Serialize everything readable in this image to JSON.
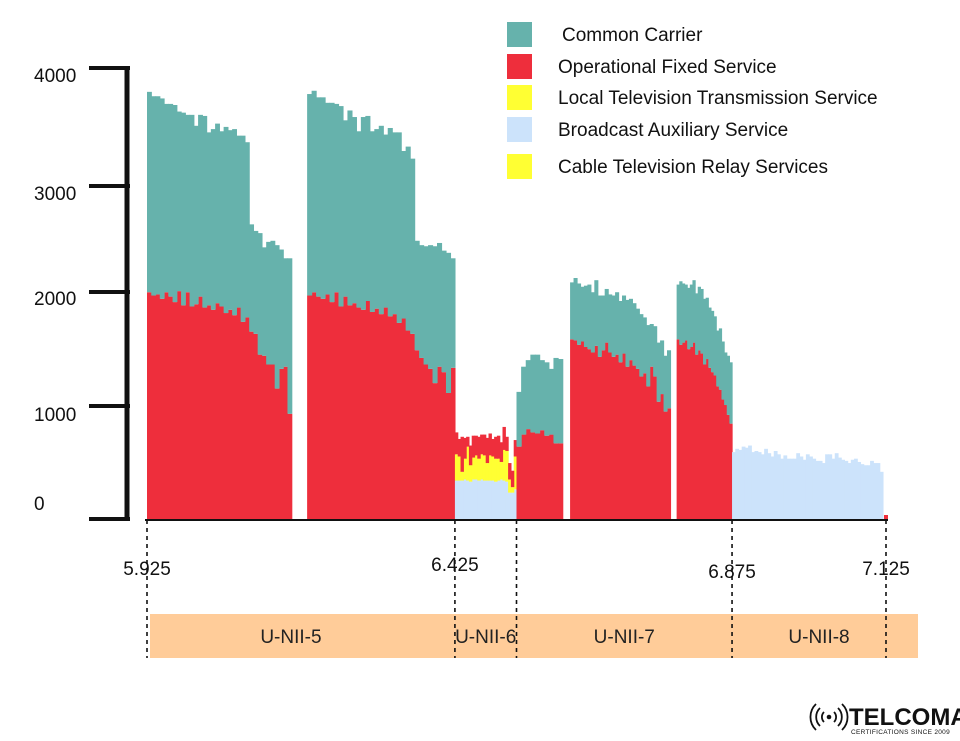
{
  "chart_data": {
    "type": "bar",
    "title": "",
    "xlabel": "",
    "ylabel": "",
    "ylim": [
      0,
      4000
    ],
    "xlim": [
      5.925,
      7.125
    ],
    "y_ticks": [
      "4000",
      "3000",
      "2000",
      "1000",
      "0"
    ],
    "x_ticks": [
      {
        "value": 5.925,
        "label": "5.925"
      },
      {
        "value": 6.425,
        "label": "6.425"
      },
      {
        "value": 6.875,
        "label": "6.875"
      },
      {
        "value": 7.125,
        "label": "7.125"
      }
    ],
    "bands": [
      {
        "label": "U-NII-5",
        "from": 5.925,
        "to": 6.425
      },
      {
        "label": "U-NII-6",
        "from": 6.425,
        "to": 6.525
      },
      {
        "label": "U-NII-7",
        "from": 6.525,
        "to": 6.875
      },
      {
        "label": "U-NII-8",
        "from": 6.875,
        "to": 7.125
      }
    ],
    "grid": false,
    "legend_position": "top-right",
    "series": [
      {
        "name": "Common Carrier",
        "color": "#66b2ac"
      },
      {
        "name": "Operational Fixed Service",
        "color": "#ee2e3c"
      },
      {
        "name": "Local Television Transmission Service",
        "color": "#ffff33"
      },
      {
        "name": "Broadcast Auxiliary Service",
        "color": "#cce3fb"
      },
      {
        "name": "Cable Television Relay Services",
        "color": "#ffff33"
      }
    ],
    "bar_groups": [
      {
        "x_start": 5.925,
        "x_end": 6.16,
        "stacks": [
          {
            "series": "Operational Fixed Service",
            "values": [
              2080,
              2050,
              2060,
              2020,
              2080,
              2040,
              1990,
              2090,
              1960,
              2080,
              1950,
              1970,
              2040,
              1940,
              1960,
              1920,
              1980,
              1950,
              1890,
              1920,
              1870,
              1940,
              1810,
              1850,
              1720,
              1700,
              1510,
              1500,
              1420,
              1420,
              1200,
              1380,
              1400,
              970
            ]
          },
          {
            "series": "Common Carrier",
            "values": [
              1830,
              1820,
              1810,
              1830,
              1720,
              1760,
              1800,
              1640,
              1760,
              1620,
              1750,
              1630,
              1660,
              1750,
              1580,
              1650,
              1640,
              1600,
              1700,
              1640,
              1700,
              1570,
              1700,
              1600,
              980,
              940,
              1110,
              990,
              1120,
              1130,
              1310,
              1090,
              990,
              1420
            ]
          }
        ]
      },
      {
        "x_start": 6.185,
        "x_end": 6.425,
        "stacks": [
          {
            "series": "Operational Fixed Service",
            "values": [
              2050,
              2080,
              2040,
              2020,
              2060,
              1990,
              2080,
              1950,
              2040,
              1960,
              1980,
              1940,
              1920,
              2000,
              1900,
              1930,
              1880,
              1940,
              1860,
              1880,
              1800,
              1840,
              1730,
              1700,
              1550,
              1480,
              1420,
              1380,
              1250,
              1400,
              1350,
              1160,
              1390
            ]
          },
          {
            "series": "Common Carrier",
            "values": [
              1840,
              1840,
              1820,
              1840,
              1750,
              1820,
              1720,
              1830,
              1610,
              1780,
              1700,
              1610,
              1760,
              1690,
              1650,
              1640,
              1720,
              1580,
              1720,
              1660,
              1740,
              1530,
              1680,
              1600,
              1000,
              1030,
              1080,
              1130,
              1250,
              1130,
              1110,
              1280,
              1000
            ]
          }
        ]
      },
      {
        "x_start": 6.425,
        "x_end": 6.525,
        "stacks": [
          {
            "series": "Broadcast Auxiliary Service",
            "values": [
              360,
              360,
              360,
              370,
              360,
              350,
              370,
              370,
              360,
              370,
              360,
              360,
              360,
              360,
              350,
              360,
              370,
              360,
              350,
              250,
              250,
              280
            ]
          },
          {
            "series": "Local Television Transmission Service",
            "values": [
              240,
              220,
              80,
              190,
              310,
              150,
              200,
              220,
              200,
              230,
              230,
              160,
              230,
              220,
              210,
              200,
              160,
              280,
              280,
              120,
              50,
              300
            ]
          },
          {
            "series": "Operational Fixed Service",
            "values": [
              200,
              160,
              320,
              190,
              90,
              180,
              200,
              180,
              200,
              180,
              190,
              230,
              200,
              160,
              200,
              210,
              180,
              210,
              130,
              150,
              150,
              150
            ]
          }
        ]
      },
      {
        "x_start": 6.525,
        "x_end": 6.6,
        "stacks": [
          {
            "series": "Operational Fixed Service",
            "values": [
              670,
              780,
              830,
              800,
              790,
              820,
              770,
              780,
              700,
              700
            ]
          },
          {
            "series": "Common Carrier",
            "values": [
              500,
              620,
              630,
              710,
              720,
              640,
              670,
              600,
              780,
              770
            ]
          }
        ]
      },
      {
        "x_start": 6.612,
        "x_end": 6.775,
        "stacks": [
          {
            "series": "Operational Fixed Service",
            "values": [
              1650,
              1640,
              1600,
              1630,
              1580,
              1560,
              1530,
              1590,
              1490,
              1550,
              1620,
              1530,
              1490,
              1510,
              1440,
              1520,
              1400,
              1460,
              1410,
              1380,
              1310,
              1340,
              1220,
              1400,
              1310,
              1080,
              1150,
              990,
              1020
            ]
          },
          {
            "series": "Common Carrier",
            "values": [
              520,
              570,
              560,
              500,
              560,
              590,
              550,
              600,
              560,
              500,
              490,
              530,
              560,
              570,
              560,
              530,
              610,
              560,
              570,
              550,
              570,
              510,
              560,
              390,
              460,
              540,
              490,
              510,
              530
            ]
          }
        ]
      },
      {
        "x_start": 6.785,
        "x_end": 6.875,
        "stacks": [
          {
            "series": "Operational Fixed Service",
            "values": [
              1650,
              1600,
              1620,
              1640,
              1560,
              1580,
              1620,
              1510,
              1550,
              1520,
              1420,
              1470,
              1390,
              1350,
              1320,
              1220,
              1190,
              1100,
              1050,
              960,
              880
            ]
          },
          {
            "series": "Common Carrier",
            "values": [
              500,
              580,
              540,
              510,
              560,
              570,
              570,
              560,
              580,
              590,
              600,
              560,
              550,
              560,
              540,
              510,
              560,
              530,
              480,
              540,
              560
            ]
          }
        ]
      },
      {
        "x_start": 6.875,
        "x_end": 7.12,
        "stacks": [
          {
            "series": "Broadcast Auxiliary Service",
            "values": [
              620,
              650,
              640,
              670,
              660,
              680,
              620,
              630,
              620,
              600,
              650,
              610,
              580,
              630,
              600,
              560,
              590,
              560,
              560,
              560,
              610,
              580,
              550,
              600,
              580,
              560,
              540,
              540,
              520,
              600,
              600,
              560,
              610,
              570,
              550,
              540,
              520,
              550,
              560,
              530,
              510,
              500,
              500,
              540,
              520,
              520,
              440
            ]
          }
        ]
      }
    ]
  },
  "logo": {
    "name": "TELCOMA",
    "tagline": "CERTIFICATIONS SINCE 2009",
    "icon": "broadcast-signal-icon"
  }
}
